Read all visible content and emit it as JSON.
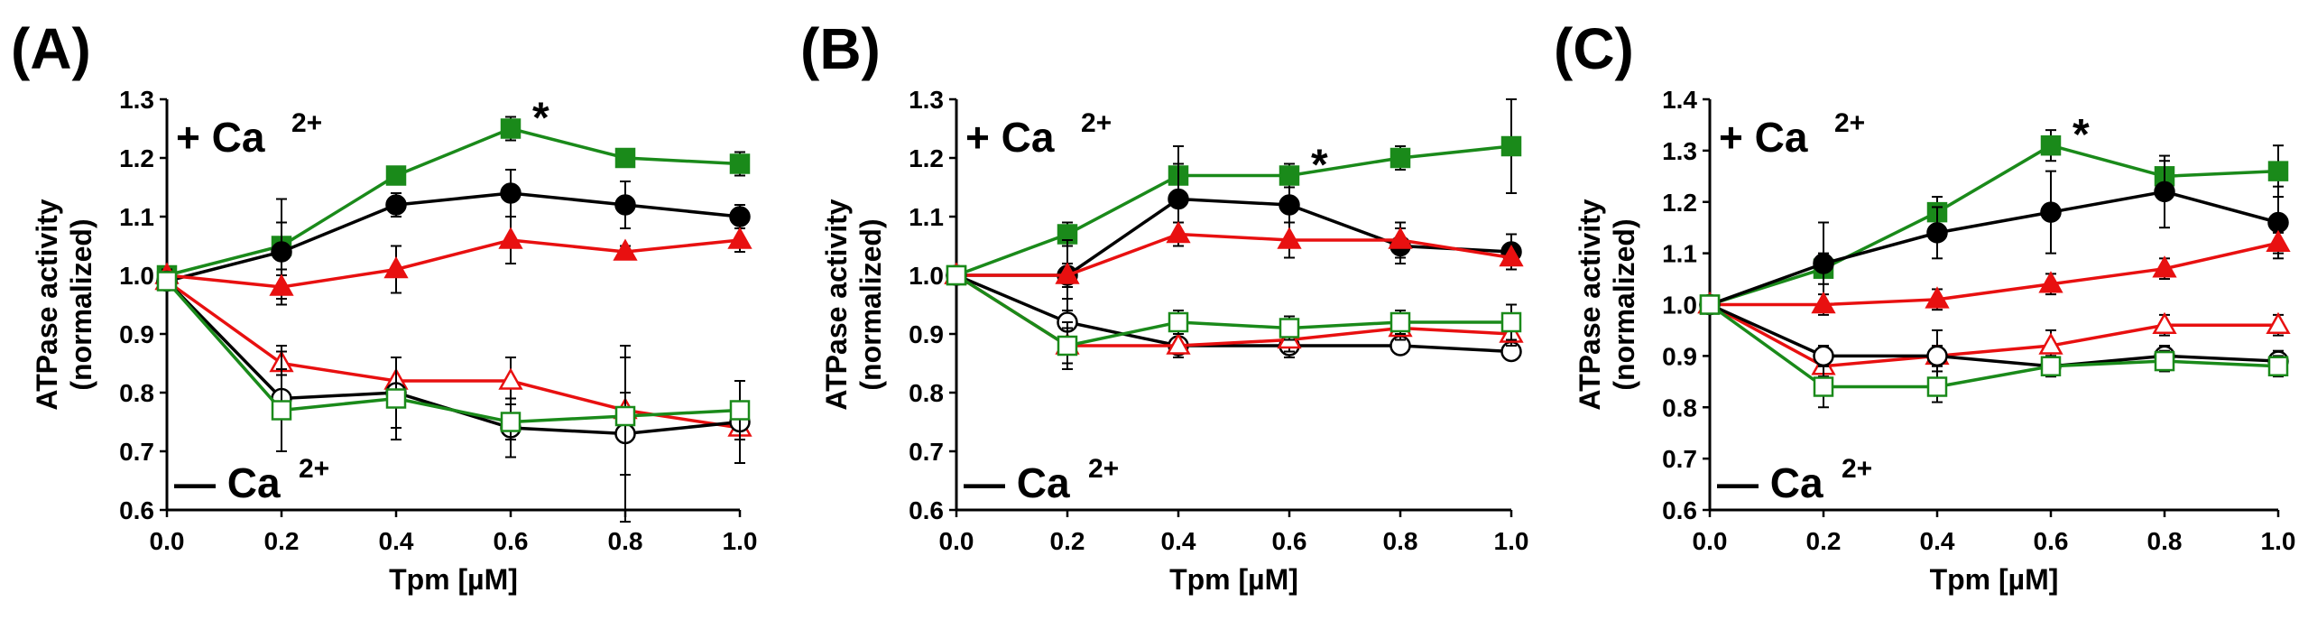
{
  "chart_data": [
    {
      "type": "line",
      "panel_label": "(A)",
      "xlabel": "Tpm [µM]",
      "ylabel_line1": "ATPase activity",
      "ylabel_line2": "(normalized)",
      "x": [
        0.0,
        0.2,
        0.4,
        0.6,
        0.8,
        1.0
      ],
      "x_ticks": [
        "0.0",
        "0.2",
        "0.4",
        "0.6",
        "0.8",
        "1.0"
      ],
      "ylim": [
        0.6,
        1.3
      ],
      "y_ticks": [
        "0.6",
        "0.7",
        "0.8",
        "0.9",
        "1.0",
        "1.1",
        "1.2",
        "1.3"
      ],
      "plus_ca_label": "+ Ca",
      "minus_ca_label": "— Ca",
      "ca_superscript": "2+",
      "significance_marker": "*",
      "significance_at": {
        "x": 0.6,
        "y": 1.25
      },
      "series": [
        {
          "marker": "square",
          "filled": true,
          "color": "#1a8a1a",
          "values": [
            1.0,
            1.05,
            1.17,
            1.25,
            1.2,
            1.19
          ],
          "errors": [
            0.01,
            0.04,
            0.01,
            0.02,
            0.01,
            0.02
          ]
        },
        {
          "marker": "circle",
          "filled": true,
          "color": "#000000",
          "values": [
            0.99,
            1.04,
            1.12,
            1.14,
            1.12,
            1.1
          ],
          "errors": [
            0.01,
            0.09,
            0.02,
            0.04,
            0.04,
            0.02
          ]
        },
        {
          "marker": "triangle",
          "filled": true,
          "color": "#e81010",
          "values": [
            1.0,
            0.98,
            1.01,
            1.06,
            1.04,
            1.06
          ],
          "errors": [
            0.01,
            0.02,
            0.04,
            0.04,
            0.01,
            0.02
          ]
        },
        {
          "marker": "triangle",
          "filled": false,
          "color": "#e81010",
          "values": [
            0.99,
            0.85,
            0.82,
            0.82,
            0.77,
            0.74
          ],
          "errors": [
            0.01,
            0.02,
            0.04,
            0.04,
            0.03,
            0.02
          ]
        },
        {
          "marker": "circle",
          "filled": false,
          "color": "#000000",
          "values": [
            0.99,
            0.79,
            0.8,
            0.74,
            0.73,
            0.75
          ],
          "errors": [
            0.01,
            0.09,
            0.06,
            0.05,
            0.15,
            0.07
          ]
        },
        {
          "marker": "square",
          "filled": false,
          "color": "#1a8a1a",
          "values": [
            0.99,
            0.77,
            0.79,
            0.75,
            0.76,
            0.77
          ],
          "errors": [
            0.01,
            0.07,
            0.07,
            0.03,
            0.1,
            0.05
          ]
        }
      ]
    },
    {
      "type": "line",
      "panel_label": "(B)",
      "xlabel": "Tpm [µM]",
      "ylabel_line1": "ATPase activity",
      "ylabel_line2": "(normalized)",
      "x": [
        0.0,
        0.2,
        0.4,
        0.6,
        0.8,
        1.0
      ],
      "x_ticks": [
        "0.0",
        "0.2",
        "0.4",
        "0.6",
        "0.8",
        "1.0"
      ],
      "ylim": [
        0.6,
        1.3
      ],
      "y_ticks": [
        "0.6",
        "0.7",
        "0.8",
        "0.9",
        "1.0",
        "1.1",
        "1.2",
        "1.3"
      ],
      "plus_ca_label": "+ Ca",
      "minus_ca_label": "— Ca",
      "ca_superscript": "2+",
      "significance_marker": "*",
      "significance_at": {
        "x": 0.6,
        "y": 1.17
      },
      "series": [
        {
          "marker": "square",
          "filled": true,
          "color": "#1a8a1a",
          "values": [
            1.0,
            1.07,
            1.17,
            1.17,
            1.2,
            1.22
          ],
          "errors": [
            0.01,
            0.02,
            0.05,
            0.02,
            0.02,
            0.08
          ]
        },
        {
          "marker": "circle",
          "filled": true,
          "color": "#000000",
          "values": [
            1.0,
            1.0,
            1.13,
            1.12,
            1.05,
            1.04
          ],
          "errors": [
            0.01,
            0.06,
            0.06,
            0.03,
            0.03,
            0.03
          ]
        },
        {
          "marker": "triangle",
          "filled": true,
          "color": "#e81010",
          "values": [
            1.0,
            1.0,
            1.07,
            1.06,
            1.06,
            1.03
          ],
          "errors": [
            0.01,
            0.02,
            0.02,
            0.03,
            0.03,
            0.02
          ]
        },
        {
          "marker": "circle",
          "filled": false,
          "color": "#000000",
          "values": [
            1.0,
            0.92,
            0.88,
            0.88,
            0.88,
            0.87
          ],
          "errors": [
            0.01,
            0.04,
            0.02,
            0.02,
            0.01,
            0.01
          ]
        },
        {
          "marker": "triangle",
          "filled": false,
          "color": "#e81010",
          "values": [
            1.0,
            0.88,
            0.88,
            0.89,
            0.91,
            0.9
          ],
          "errors": [
            0.01,
            0.03,
            0.02,
            0.02,
            0.02,
            0.02
          ]
        },
        {
          "marker": "square",
          "filled": false,
          "color": "#1a8a1a",
          "values": [
            1.0,
            0.88,
            0.92,
            0.91,
            0.92,
            0.92
          ],
          "errors": [
            0.01,
            0.04,
            0.02,
            0.02,
            0.02,
            0.03
          ]
        }
      ]
    },
    {
      "type": "line",
      "panel_label": "(C)",
      "xlabel": "Tpm [µM]",
      "ylabel_line1": "ATPase activity",
      "ylabel_line2": "(normalized)",
      "x": [
        0.0,
        0.2,
        0.4,
        0.6,
        0.8,
        1.0
      ],
      "x_ticks": [
        "0.0",
        "0.2",
        "0.4",
        "0.6",
        "0.8",
        "1.0"
      ],
      "ylim": [
        0.6,
        1.4
      ],
      "y_ticks": [
        "0.6",
        "0.7",
        "0.8",
        "0.9",
        "1.0",
        "1.1",
        "1.2",
        "1.3",
        "1.4"
      ],
      "plus_ca_label": "+ Ca",
      "minus_ca_label": "— Ca",
      "ca_superscript": "2+",
      "significance_marker": "*",
      "significance_at": {
        "x": 0.6,
        "y": 1.31
      },
      "series": [
        {
          "marker": "square",
          "filled": true,
          "color": "#1a8a1a",
          "values": [
            1.0,
            1.07,
            1.18,
            1.31,
            1.25,
            1.26
          ],
          "errors": [
            0.01,
            0.03,
            0.03,
            0.03,
            0.03,
            0.05
          ]
        },
        {
          "marker": "circle",
          "filled": true,
          "color": "#000000",
          "values": [
            1.0,
            1.08,
            1.14,
            1.18,
            1.22,
            1.16
          ],
          "errors": [
            0.01,
            0.08,
            0.05,
            0.08,
            0.07,
            0.07
          ]
        },
        {
          "marker": "triangle",
          "filled": true,
          "color": "#e81010",
          "values": [
            1.0,
            1.0,
            1.01,
            1.04,
            1.07,
            1.12
          ],
          "errors": [
            0.01,
            0.02,
            0.02,
            0.02,
            0.02,
            0.02
          ]
        },
        {
          "marker": "triangle",
          "filled": false,
          "color": "#e81010",
          "values": [
            1.0,
            0.88,
            0.9,
            0.92,
            0.96,
            0.96
          ],
          "errors": [
            0.01,
            0.02,
            0.02,
            0.03,
            0.02,
            0.02
          ]
        },
        {
          "marker": "circle",
          "filled": false,
          "color": "#000000",
          "values": [
            1.0,
            0.9,
            0.9,
            0.88,
            0.9,
            0.89
          ],
          "errors": [
            0.01,
            0.02,
            0.05,
            0.02,
            0.02,
            0.02
          ]
        },
        {
          "marker": "square",
          "filled": false,
          "color": "#1a8a1a",
          "values": [
            1.0,
            0.84,
            0.84,
            0.88,
            0.89,
            0.88
          ],
          "errors": [
            0.01,
            0.04,
            0.03,
            0.02,
            0.02,
            0.02
          ]
        }
      ]
    }
  ]
}
